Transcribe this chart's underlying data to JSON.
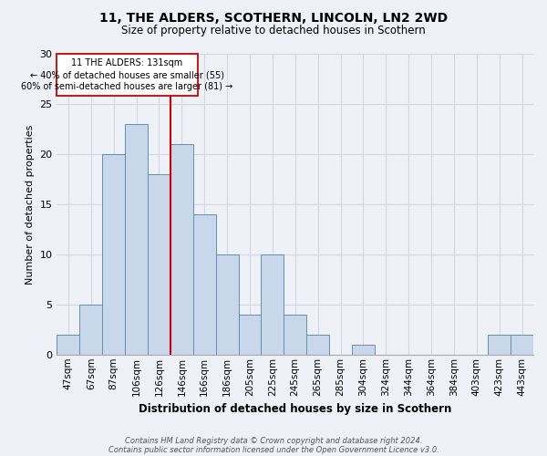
{
  "title": "11, THE ALDERS, SCOTHERN, LINCOLN, LN2 2WD",
  "subtitle": "Size of property relative to detached houses in Scothern",
  "xlabel": "Distribution of detached houses by size in Scothern",
  "ylabel": "Number of detached properties",
  "footnote1": "Contains HM Land Registry data © Crown copyright and database right 2024.",
  "footnote2": "Contains public sector information licensed under the Open Government Licence v3.0.",
  "categories": [
    "47sqm",
    "67sqm",
    "87sqm",
    "106sqm",
    "126sqm",
    "146sqm",
    "166sqm",
    "186sqm",
    "205sqm",
    "225sqm",
    "245sqm",
    "265sqm",
    "285sqm",
    "304sqm",
    "324sqm",
    "344sqm",
    "364sqm",
    "384sqm",
    "403sqm",
    "423sqm",
    "443sqm"
  ],
  "values": [
    2,
    5,
    20,
    23,
    18,
    21,
    14,
    10,
    4,
    10,
    4,
    2,
    0,
    1,
    0,
    0,
    0,
    0,
    0,
    2,
    2
  ],
  "bar_color": "#c8d8ea",
  "bar_edge_color": "#6090b8",
  "vline_at_index": 4,
  "annotation_line1": "11 THE ALDERS: 131sqm",
  "annotation_line2": "← 40% of detached houses are smaller (55)",
  "annotation_line3": "60% of semi-detached houses are larger (81) →",
  "vline_color": "#cc0000",
  "ann_box_color": "#cc0000",
  "ylim": [
    0,
    30
  ],
  "yticks": [
    0,
    5,
    10,
    15,
    20,
    25,
    30
  ],
  "bg_color": "#eef2f7",
  "grid_color": "#d0d8e4",
  "title_fontsize": 10,
  "subtitle_fontsize": 8.5,
  "xlabel_fontsize": 8.5,
  "ylabel_fontsize": 8,
  "tick_fontsize": 7.5,
  "footnote_fontsize": 6,
  "ann_fontsize": 7
}
